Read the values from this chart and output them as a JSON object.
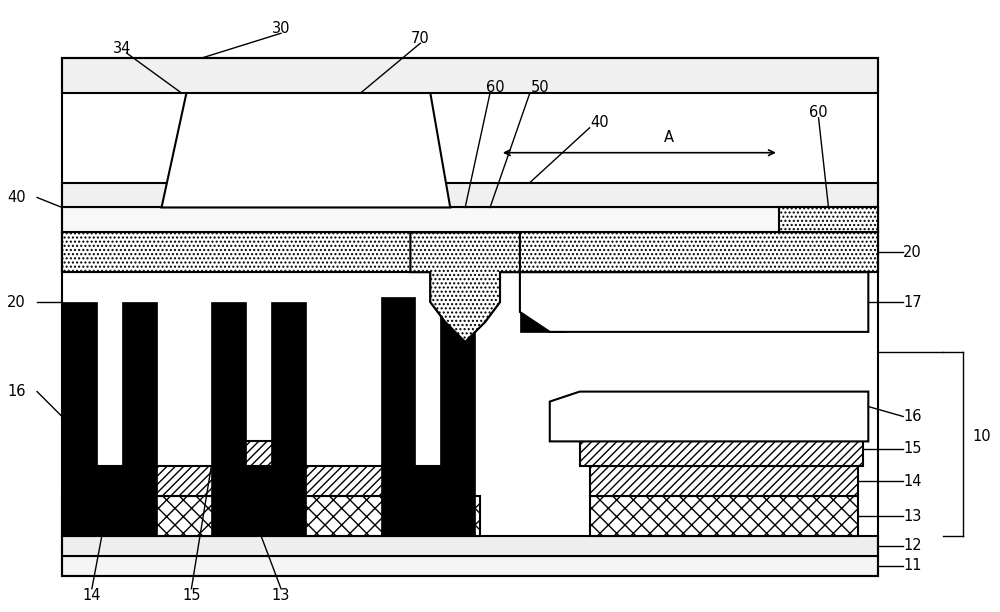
{
  "bg": "#ffffff",
  "black": "#000000",
  "white": "#ffffff",
  "lw": 1.5,
  "fig_w": 10.0,
  "fig_h": 6.12,
  "xlim": [
    0,
    100
  ],
  "ylim": [
    0,
    61.2
  ]
}
